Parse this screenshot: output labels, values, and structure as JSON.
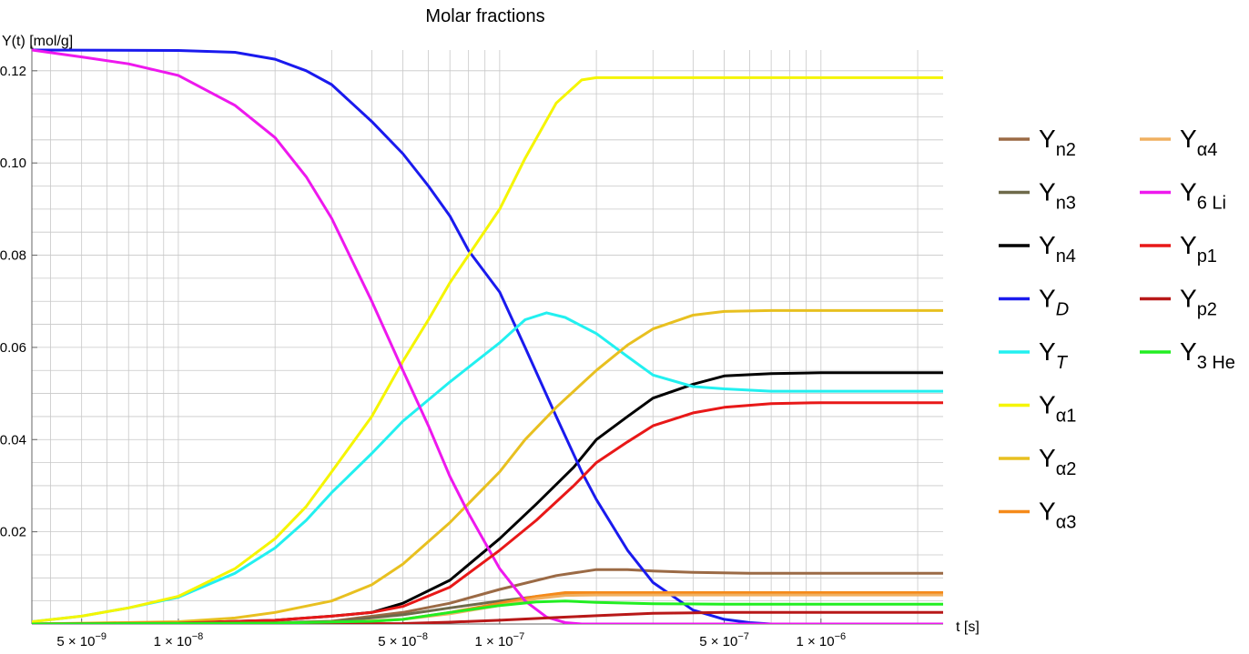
{
  "chart_data": {
    "type": "line",
    "title": "Molar fractions",
    "ylabel": "Y(t) [mol/g]",
    "xlabel": "t [s]",
    "x_scale": "log",
    "xlim": [
      3.5e-09,
      2.4e-06
    ],
    "ylim": [
      0,
      0.1245
    ],
    "grid": true,
    "legend_placement": "right",
    "y_ticks": [
      {
        "value": 0.02,
        "label": "0.02"
      },
      {
        "value": 0.04,
        "label": "0.04"
      },
      {
        "value": 0.06,
        "label": "0.06"
      },
      {
        "value": 0.08,
        "label": "0.08"
      },
      {
        "value": 0.1,
        "label": "0.10"
      },
      {
        "value": 0.12,
        "label": "0.12"
      }
    ],
    "x_ticks": [
      {
        "value": 5e-09,
        "mant": "5",
        "exp": "-9"
      },
      {
        "value": 1e-08,
        "mant": "1",
        "exp": "-8"
      },
      {
        "value": 5e-08,
        "mant": "5",
        "exp": "-8"
      },
      {
        "value": 1e-07,
        "mant": "1",
        "exp": "-7"
      },
      {
        "value": 5e-07,
        "mant": "5",
        "exp": "-7"
      },
      {
        "value": 1e-06,
        "mant": "1",
        "exp": "-6"
      }
    ],
    "series": [
      {
        "name": "Yn2",
        "legend_sub": "n2",
        "italic": false,
        "color": "#9b6a45",
        "points": [
          [
            3.5e-09,
            0
          ],
          [
            2e-08,
            0.0003
          ],
          [
            3e-08,
            0.0006
          ],
          [
            5e-08,
            0.0025
          ],
          [
            7e-08,
            0.0045
          ],
          [
            1e-07,
            0.0075
          ],
          [
            1.5e-07,
            0.0105
          ],
          [
            2e-07,
            0.0118
          ],
          [
            2.5e-07,
            0.0118
          ],
          [
            3e-07,
            0.0115
          ],
          [
            4e-07,
            0.0112
          ],
          [
            6e-07,
            0.011
          ],
          [
            1e-06,
            0.011
          ],
          [
            2.4e-06,
            0.011
          ]
        ]
      },
      {
        "name": "Yn3",
        "legend_sub": "n3",
        "italic": false,
        "color": "#6e6a4a",
        "points": [
          [
            3.5e-09,
            0
          ],
          [
            2e-08,
            0.0003
          ],
          [
            3e-08,
            0.0005
          ],
          [
            5e-08,
            0.002
          ],
          [
            7e-08,
            0.0035
          ],
          [
            1e-07,
            0.005
          ],
          [
            1.5e-07,
            0.0065
          ],
          [
            2e-07,
            0.0068
          ],
          [
            3e-07,
            0.0068
          ],
          [
            2.4e-06,
            0.0068
          ]
        ]
      },
      {
        "name": "Yn4",
        "legend_sub": "n4",
        "italic": false,
        "color": "#000000",
        "points": [
          [
            3.5e-09,
            0
          ],
          [
            1e-08,
            0.0002
          ],
          [
            2e-08,
            0.0008
          ],
          [
            3e-08,
            0.0017
          ],
          [
            4e-08,
            0.0025
          ],
          [
            5e-08,
            0.0045
          ],
          [
            7e-08,
            0.0095
          ],
          [
            1e-07,
            0.0185
          ],
          [
            1.3e-07,
            0.026
          ],
          [
            1.7e-07,
            0.034
          ],
          [
            2e-07,
            0.04
          ],
          [
            2.5e-07,
            0.045
          ],
          [
            3e-07,
            0.049
          ],
          [
            4e-07,
            0.052
          ],
          [
            5e-07,
            0.0538
          ],
          [
            7e-07,
            0.0543
          ],
          [
            1e-06,
            0.0545
          ],
          [
            2.4e-06,
            0.0545
          ]
        ]
      },
      {
        "name": "YD",
        "legend_sub": "D",
        "italic": true,
        "color": "#1a1aee",
        "points": [
          [
            3.5e-09,
            0.1245
          ],
          [
            1e-08,
            0.1244
          ],
          [
            1.5e-08,
            0.124
          ],
          [
            2e-08,
            0.1225
          ],
          [
            2.5e-08,
            0.12
          ],
          [
            3e-08,
            0.117
          ],
          [
            4e-08,
            0.109
          ],
          [
            5e-08,
            0.102
          ],
          [
            6e-08,
            0.095
          ],
          [
            7e-08,
            0.0885
          ],
          [
            8e-08,
            0.081
          ],
          [
            1e-07,
            0.072
          ],
          [
            1.2e-07,
            0.06
          ],
          [
            1.5e-07,
            0.045
          ],
          [
            1.8e-07,
            0.033
          ],
          [
            2e-07,
            0.027
          ],
          [
            2.5e-07,
            0.016
          ],
          [
            3e-07,
            0.009
          ],
          [
            4e-07,
            0.003
          ],
          [
            5e-07,
            0.001
          ],
          [
            6e-07,
            0.0003
          ],
          [
            7e-07,
            0
          ],
          [
            2.4e-06,
            0
          ]
        ]
      },
      {
        "name": "YT",
        "legend_sub": "T",
        "italic": true,
        "color": "#22f0f0",
        "points": [
          [
            3.5e-09,
            0.0005
          ],
          [
            5e-09,
            0.0017
          ],
          [
            7e-09,
            0.0035
          ],
          [
            1e-08,
            0.0058
          ],
          [
            1.5e-08,
            0.011
          ],
          [
            2e-08,
            0.0165
          ],
          [
            2.5e-08,
            0.0225
          ],
          [
            3e-08,
            0.0285
          ],
          [
            4e-08,
            0.037
          ],
          [
            5e-08,
            0.044
          ],
          [
            7e-08,
            0.0525
          ],
          [
            1e-07,
            0.061
          ],
          [
            1.2e-07,
            0.066
          ],
          [
            1.4e-07,
            0.0675
          ],
          [
            1.6e-07,
            0.0665
          ],
          [
            2e-07,
            0.063
          ],
          [
            2.5e-07,
            0.058
          ],
          [
            3e-07,
            0.054
          ],
          [
            4e-07,
            0.0515
          ],
          [
            5e-07,
            0.051
          ],
          [
            7e-07,
            0.0505
          ],
          [
            2.4e-06,
            0.0505
          ]
        ]
      },
      {
        "name": "Yα1",
        "legend_sub": "α1",
        "italic": false,
        "color": "#f5f500",
        "points": [
          [
            3.5e-09,
            0.0005
          ],
          [
            5e-09,
            0.0017
          ],
          [
            7e-09,
            0.0035
          ],
          [
            1e-08,
            0.006
          ],
          [
            1.5e-08,
            0.012
          ],
          [
            2e-08,
            0.0185
          ],
          [
            2.5e-08,
            0.0255
          ],
          [
            3e-08,
            0.033
          ],
          [
            4e-08,
            0.045
          ],
          [
            5e-08,
            0.057
          ],
          [
            6e-08,
            0.066
          ],
          [
            7e-08,
            0.074
          ],
          [
            1e-07,
            0.09
          ],
          [
            1.2e-07,
            0.101
          ],
          [
            1.5e-07,
            0.113
          ],
          [
            1.8e-07,
            0.118
          ],
          [
            2e-07,
            0.1185
          ],
          [
            3e-07,
            0.1185
          ],
          [
            2.4e-06,
            0.1185
          ]
        ]
      },
      {
        "name": "Yα2",
        "legend_sub": "α2",
        "italic": false,
        "color": "#e8c020",
        "points": [
          [
            3.5e-09,
            0
          ],
          [
            1e-08,
            0.0005
          ],
          [
            1.5e-08,
            0.0013
          ],
          [
            2e-08,
            0.0025
          ],
          [
            3e-08,
            0.005
          ],
          [
            4e-08,
            0.0085
          ],
          [
            5e-08,
            0.013
          ],
          [
            7e-08,
            0.022
          ],
          [
            1e-07,
            0.033
          ],
          [
            1.2e-07,
            0.04
          ],
          [
            1.5e-07,
            0.047
          ],
          [
            2e-07,
            0.055
          ],
          [
            2.5e-07,
            0.0605
          ],
          [
            3e-07,
            0.064
          ],
          [
            4e-07,
            0.067
          ],
          [
            5e-07,
            0.0678
          ],
          [
            7e-07,
            0.068
          ],
          [
            2.4e-06,
            0.068
          ]
        ]
      },
      {
        "name": "Yα3",
        "legend_sub": "α3",
        "italic": false,
        "color": "#f58a1a",
        "points": [
          [
            3.5e-09,
            0
          ],
          [
            2e-08,
            0.0002
          ],
          [
            4e-08,
            0.0006
          ],
          [
            5e-08,
            0.001
          ],
          [
            7e-08,
            0.0025
          ],
          [
            1e-07,
            0.0045
          ],
          [
            1.3e-07,
            0.006
          ],
          [
            1.6e-07,
            0.0068
          ],
          [
            2e-07,
            0.0068
          ],
          [
            2.4e-06,
            0.0068
          ]
        ]
      },
      {
        "name": "Yα4",
        "legend_sub": "α4",
        "italic": false,
        "color": "#f0b060",
        "points": [
          [
            3.5e-09,
            0
          ],
          [
            3e-08,
            0.0003
          ],
          [
            5e-08,
            0.001
          ],
          [
            7e-08,
            0.0022
          ],
          [
            1e-07,
            0.004
          ],
          [
            1.3e-07,
            0.0055
          ],
          [
            1.6e-07,
            0.0062
          ],
          [
            2e-07,
            0.0063
          ],
          [
            2.4e-06,
            0.0063
          ]
        ]
      },
      {
        "name": "Y6Li",
        "legend_sub": "6 Li",
        "italic": false,
        "color": "#ee18ee",
        "points": [
          [
            3.5e-09,
            0.1245
          ],
          [
            5e-09,
            0.123
          ],
          [
            7e-09,
            0.1215
          ],
          [
            1e-08,
            0.119
          ],
          [
            1.5e-08,
            0.1125
          ],
          [
            2e-08,
            0.1055
          ],
          [
            2.5e-08,
            0.097
          ],
          [
            3e-08,
            0.088
          ],
          [
            4e-08,
            0.07
          ],
          [
            5e-08,
            0.055
          ],
          [
            6e-08,
            0.043
          ],
          [
            7e-08,
            0.032
          ],
          [
            8e-08,
            0.024
          ],
          [
            1e-07,
            0.012
          ],
          [
            1.2e-07,
            0.005
          ],
          [
            1.4e-07,
            0.0015
          ],
          [
            1.6e-07,
            0.0003
          ],
          [
            1.8e-07,
            0
          ],
          [
            2.4e-06,
            0
          ]
        ]
      },
      {
        "name": "Yp1",
        "legend_sub": "p1",
        "italic": false,
        "color": "#e81818",
        "points": [
          [
            3.5e-09,
            0
          ],
          [
            1e-08,
            0.0002
          ],
          [
            2e-08,
            0.0008
          ],
          [
            3e-08,
            0.0017
          ],
          [
            4e-08,
            0.0025
          ],
          [
            5e-08,
            0.0038
          ],
          [
            7e-08,
            0.008
          ],
          [
            1e-07,
            0.016
          ],
          [
            1.3e-07,
            0.0225
          ],
          [
            1.7e-07,
            0.03
          ],
          [
            2e-07,
            0.035
          ],
          [
            2.5e-07,
            0.0395
          ],
          [
            3e-07,
            0.043
          ],
          [
            4e-07,
            0.0458
          ],
          [
            5e-07,
            0.047
          ],
          [
            7e-07,
            0.0478
          ],
          [
            1e-06,
            0.048
          ],
          [
            2.4e-06,
            0.048
          ]
        ]
      },
      {
        "name": "Yp2",
        "legend_sub": "p2",
        "italic": false,
        "color": "#b81818",
        "points": [
          [
            3.5e-09,
            0
          ],
          [
            5e-08,
            0.0001
          ],
          [
            7e-08,
            0.0004
          ],
          [
            1e-07,
            0.0008
          ],
          [
            1.5e-07,
            0.0014
          ],
          [
            2e-07,
            0.0018
          ],
          [
            3e-07,
            0.0023
          ],
          [
            5e-07,
            0.0025
          ],
          [
            1e-06,
            0.0025
          ],
          [
            2.4e-06,
            0.0025
          ]
        ]
      },
      {
        "name": "Y3He",
        "legend_sub": "3 He",
        "italic": false,
        "color": "#22ee22",
        "points": [
          [
            3.5e-09,
            0
          ],
          [
            2e-08,
            0.0002
          ],
          [
            4e-08,
            0.0006
          ],
          [
            5e-08,
            0.001
          ],
          [
            7e-08,
            0.0025
          ],
          [
            1e-07,
            0.004
          ],
          [
            1.3e-07,
            0.0048
          ],
          [
            1.6e-07,
            0.005
          ],
          [
            2e-07,
            0.0047
          ],
          [
            3e-07,
            0.0044
          ],
          [
            5e-07,
            0.0043
          ],
          [
            2.4e-06,
            0.0043
          ]
        ]
      }
    ]
  }
}
